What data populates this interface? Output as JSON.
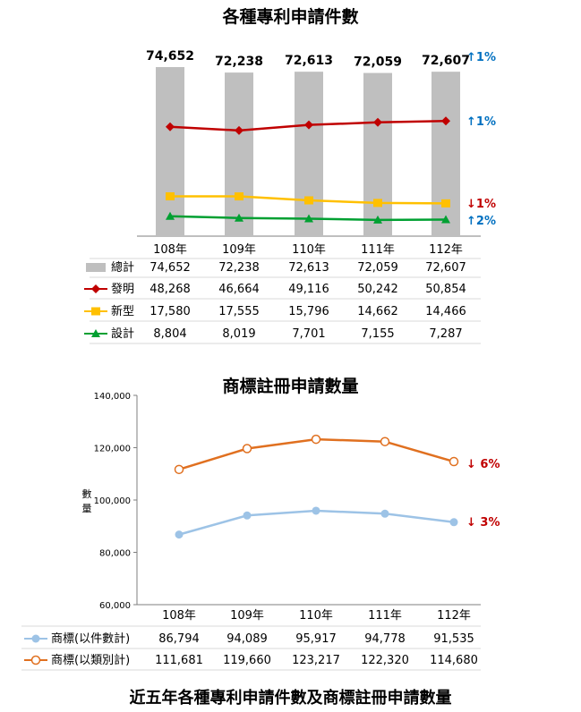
{
  "caption": "近五年各種專利申請件數及商標註冊申請數量",
  "colors": {
    "total": "#bfbfbf",
    "invention": "#c00000",
    "utility": "#ffc000",
    "design": "#00a032",
    "trademark_cases": "#9dc3e6",
    "trademark_classes": "#e07020",
    "up_arrow": "#0070c0",
    "down_arrow": "#c00000",
    "axis": "#7f7f7f"
  },
  "chart_data": [
    {
      "type": "bar",
      "title": "各種專利申請件數",
      "categories": [
        "108年",
        "109年",
        "110年",
        "111年",
        "112年"
      ],
      "series": [
        {
          "name": "總計",
          "type": "bar",
          "values": [
            74652,
            72238,
            72613,
            72059,
            72607
          ],
          "change": "↑1%",
          "direction": "up",
          "marker": "rect"
        },
        {
          "name": "發明",
          "type": "line",
          "values": [
            48268,
            46664,
            49116,
            50242,
            50854
          ],
          "change": "↑1%",
          "direction": "up",
          "marker": "diamond"
        },
        {
          "name": "新型",
          "type": "line",
          "values": [
            17580,
            17555,
            15796,
            14662,
            14466
          ],
          "change": "↓1%",
          "direction": "down",
          "marker": "square"
        },
        {
          "name": "設計",
          "type": "line",
          "values": [
            8804,
            8019,
            7701,
            7155,
            7287
          ],
          "change": "↑2%",
          "direction": "up",
          "marker": "triangle"
        }
      ],
      "bar_labels": [
        "74,652",
        "72,238",
        "72,613",
        "72,059",
        "72,607"
      ],
      "table": [
        [
          "74,652",
          "72,238",
          "72,613",
          "72,059",
          "72,607"
        ],
        [
          "48,268",
          "46,664",
          "49,116",
          "50,242",
          "50,854"
        ],
        [
          "17,580",
          "17,555",
          "15,796",
          "14,662",
          "14,466"
        ],
        [
          "8,804",
          "8,019",
          "7,701",
          "7,155",
          "7,287"
        ]
      ]
    },
    {
      "type": "line",
      "title": "商標註冊申請數量",
      "categories": [
        "108年",
        "109年",
        "110年",
        "111年",
        "112年"
      ],
      "ylabel": "數量",
      "ylim": [
        60000,
        140000
      ],
      "yticks": [
        "60,000",
        "80,000",
        "100,000",
        "120,000",
        "140,000"
      ],
      "series": [
        {
          "name": "商標(以件數計)",
          "values": [
            86794,
            94089,
            95917,
            94778,
            91535
          ],
          "change": "↓ 3%",
          "direction": "down",
          "marker": "filled-circle"
        },
        {
          "name": "商標(以類別計)",
          "values": [
            111681,
            119660,
            123217,
            122320,
            114680
          ],
          "change": "↓ 6%",
          "direction": "down",
          "marker": "open-circle"
        }
      ],
      "table": [
        [
          "86,794",
          "94,089",
          "95,917",
          "94,778",
          "91,535"
        ],
        [
          "111,681",
          "119,660",
          "123,217",
          "122,320",
          "114,680"
        ]
      ]
    }
  ]
}
